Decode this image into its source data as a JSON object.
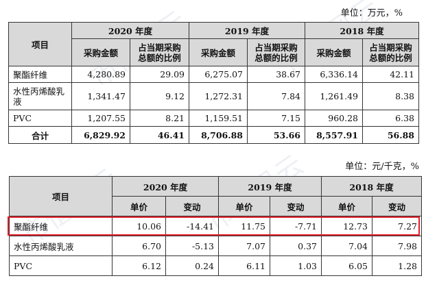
{
  "table1": {
    "unit": "单位：万元，%",
    "header": {
      "item": "项目",
      "years": [
        "2020 年度",
        "2019 年度",
        "2018 年度"
      ],
      "col_amount": "采购金额",
      "col_ratio": "占当期采购总额的比例"
    },
    "rows": [
      {
        "name": "聚酯纤维",
        "values": [
          "4,280.89",
          "29.09",
          "6,275.07",
          "38.67",
          "6,336.14",
          "42.11"
        ]
      },
      {
        "name": "水性丙烯酸乳液",
        "values": [
          "1,341.47",
          "9.12",
          "1,272.31",
          "7.84",
          "1,261.49",
          "8.38"
        ]
      },
      {
        "name": "PVC",
        "values": [
          "1,207.55",
          "8.21",
          "1,159.51",
          "7.15",
          "960.28",
          "6.38"
        ]
      },
      {
        "name": "合计",
        "values": [
          "6,829.92",
          "46.41",
          "8,706.88",
          "53.66",
          "8,557.91",
          "56.88"
        ]
      }
    ]
  },
  "table2": {
    "unit": "单位：元/千克，%",
    "header": {
      "item": "项目",
      "years": [
        "2020 年度",
        "2019 年度",
        "2018 年度"
      ],
      "col_price": "单价",
      "col_change": "变动"
    },
    "rows": [
      {
        "name": "聚酯纤维",
        "values": [
          "10.06",
          "-14.41",
          "11.75",
          "-7.71",
          "12.73",
          "7.27"
        ]
      },
      {
        "name": "水性丙烯酸乳液",
        "values": [
          "6.70",
          "-5.13",
          "7.07",
          "0.37",
          "7.04",
          "7.98"
        ]
      },
      {
        "name": "PVC",
        "values": [
          "6.12",
          "0.24",
          "6.11",
          "1.03",
          "6.05",
          "1.28"
        ]
      }
    ]
  },
  "watermark": "市值风云",
  "highlight_color": "#e0202a",
  "header_bg": "#d9d9d9"
}
